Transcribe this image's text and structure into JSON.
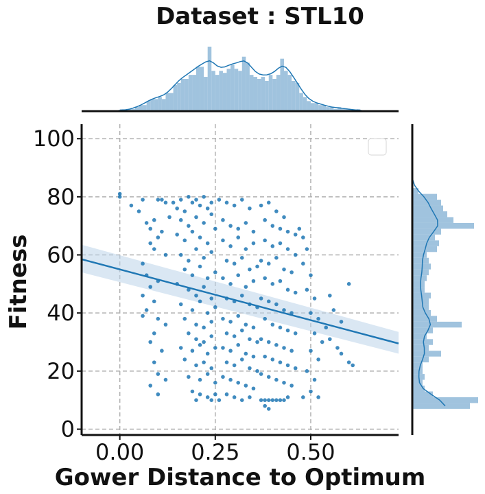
{
  "chart_data": {
    "type": "scatter",
    "title": "Dataset :  STL10",
    "xlabel": "Gower Distance to Optimum",
    "ylabel": "Fitness",
    "xlim": [
      -0.1,
      0.73
    ],
    "ylim": [
      -2,
      105
    ],
    "xticks": [
      0.0,
      0.25,
      0.5
    ],
    "xtick_labels": [
      "0.00",
      "0.25",
      "0.50"
    ],
    "yticks": [
      0,
      20,
      40,
      60,
      80,
      100
    ],
    "ytick_labels": [
      "0",
      "20",
      "40",
      "60",
      "80",
      "100"
    ],
    "grid": true,
    "legend": "top-right (empty)",
    "colors": {
      "points": "#1f77b4",
      "line": "#1f77b4",
      "band": "#bcd3ea",
      "hist": "#8fb8d8"
    },
    "regression": {
      "x": [
        -0.1,
        0.73
      ],
      "y": [
        58.5,
        29.5
      ],
      "ci_lower": [
        54,
        26
      ],
      "ci_upper": [
        63.5,
        33.5
      ]
    },
    "points": [
      [
        0.0,
        81
      ],
      [
        0.0,
        80
      ],
      [
        0.03,
        77
      ],
      [
        0.05,
        75
      ],
      [
        0.06,
        79
      ],
      [
        0.07,
        71
      ],
      [
        0.08,
        64
      ],
      [
        0.08,
        69
      ],
      [
        0.09,
        72
      ],
      [
        0.1,
        79
      ],
      [
        0.11,
        79
      ],
      [
        0.12,
        78
      ],
      [
        0.13,
        73
      ],
      [
        0.11,
        68
      ],
      [
        0.1,
        66
      ],
      [
        0.09,
        62
      ],
      [
        0.12,
        60
      ],
      [
        0.06,
        57
      ],
      [
        0.07,
        53
      ],
      [
        0.1,
        51
      ],
      [
        0.08,
        49
      ],
      [
        0.06,
        46
      ],
      [
        0.09,
        44
      ],
      [
        0.07,
        41
      ],
      [
        0.06,
        39
      ],
      [
        0.1,
        38
      ],
      [
        0.12,
        36
      ],
      [
        0.09,
        33
      ],
      [
        0.08,
        30
      ],
      [
        0.11,
        27
      ],
      [
        0.09,
        23
      ],
      [
        0.1,
        19
      ],
      [
        0.12,
        17
      ],
      [
        0.08,
        15
      ],
      [
        0.1,
        12
      ],
      [
        0.14,
        78
      ],
      [
        0.15,
        76
      ],
      [
        0.16,
        79
      ],
      [
        0.17,
        75
      ],
      [
        0.18,
        80
      ],
      [
        0.19,
        78
      ],
      [
        0.2,
        79
      ],
      [
        0.21,
        77
      ],
      [
        0.22,
        80
      ],
      [
        0.23,
        76
      ],
      [
        0.24,
        78
      ],
      [
        0.16,
        72
      ],
      [
        0.18,
        70
      ],
      [
        0.2,
        73
      ],
      [
        0.22,
        71
      ],
      [
        0.24,
        74
      ],
      [
        0.15,
        67
      ],
      [
        0.17,
        65
      ],
      [
        0.19,
        68
      ],
      [
        0.21,
        66
      ],
      [
        0.23,
        64
      ],
      [
        0.25,
        69
      ],
      [
        0.16,
        60
      ],
      [
        0.18,
        58
      ],
      [
        0.2,
        62
      ],
      [
        0.22,
        59
      ],
      [
        0.24,
        61
      ],
      [
        0.17,
        55
      ],
      [
        0.19,
        53
      ],
      [
        0.21,
        56
      ],
      [
        0.23,
        52
      ],
      [
        0.25,
        54
      ],
      [
        0.15,
        50
      ],
      [
        0.18,
        48
      ],
      [
        0.2,
        46
      ],
      [
        0.22,
        49
      ],
      [
        0.24,
        45
      ],
      [
        0.16,
        43
      ],
      [
        0.19,
        41
      ],
      [
        0.21,
        44
      ],
      [
        0.23,
        40
      ],
      [
        0.25,
        42
      ],
      [
        0.17,
        38
      ],
      [
        0.2,
        36
      ],
      [
        0.22,
        35
      ],
      [
        0.24,
        37
      ],
      [
        0.18,
        33
      ],
      [
        0.2,
        31
      ],
      [
        0.22,
        30
      ],
      [
        0.24,
        32
      ],
      [
        0.16,
        28
      ],
      [
        0.19,
        27
      ],
      [
        0.21,
        29
      ],
      [
        0.23,
        26
      ],
      [
        0.25,
        28
      ],
      [
        0.17,
        24
      ],
      [
        0.2,
        22
      ],
      [
        0.22,
        23
      ],
      [
        0.24,
        21
      ],
      [
        0.18,
        18
      ],
      [
        0.21,
        17
      ],
      [
        0.23,
        19
      ],
      [
        0.25,
        16
      ],
      [
        0.19,
        13
      ],
      [
        0.21,
        12
      ],
      [
        0.23,
        11
      ],
      [
        0.25,
        12
      ],
      [
        0.2,
        10
      ],
      [
        0.24,
        10
      ],
      [
        0.26,
        79
      ],
      [
        0.28,
        78
      ],
      [
        0.3,
        77
      ],
      [
        0.32,
        79
      ],
      [
        0.34,
        76
      ],
      [
        0.27,
        72
      ],
      [
        0.29,
        70
      ],
      [
        0.31,
        69
      ],
      [
        0.33,
        71
      ],
      [
        0.35,
        68
      ],
      [
        0.27,
        65
      ],
      [
        0.29,
        63
      ],
      [
        0.31,
        66
      ],
      [
        0.33,
        62
      ],
      [
        0.35,
        64
      ],
      [
        0.28,
        58
      ],
      [
        0.3,
        57
      ],
      [
        0.32,
        59
      ],
      [
        0.34,
        55
      ],
      [
        0.36,
        56
      ],
      [
        0.27,
        52
      ],
      [
        0.29,
        50
      ],
      [
        0.31,
        53
      ],
      [
        0.33,
        49
      ],
      [
        0.35,
        51
      ],
      [
        0.28,
        45
      ],
      [
        0.3,
        44
      ],
      [
        0.32,
        46
      ],
      [
        0.34,
        43
      ],
      [
        0.36,
        42
      ],
      [
        0.27,
        38
      ],
      [
        0.29,
        37
      ],
      [
        0.31,
        39
      ],
      [
        0.33,
        36
      ],
      [
        0.35,
        35
      ],
      [
        0.28,
        33
      ],
      [
        0.3,
        32
      ],
      [
        0.32,
        34
      ],
      [
        0.34,
        31
      ],
      [
        0.36,
        30
      ],
      [
        0.27,
        28
      ],
      [
        0.29,
        27
      ],
      [
        0.31,
        29
      ],
      [
        0.33,
        26
      ],
      [
        0.35,
        25
      ],
      [
        0.28,
        23
      ],
      [
        0.3,
        22
      ],
      [
        0.32,
        24
      ],
      [
        0.34,
        21
      ],
      [
        0.36,
        20
      ],
      [
        0.27,
        18
      ],
      [
        0.29,
        17
      ],
      [
        0.31,
        16
      ],
      [
        0.33,
        15
      ],
      [
        0.35,
        14
      ],
      [
        0.28,
        12
      ],
      [
        0.3,
        11
      ],
      [
        0.32,
        10
      ],
      [
        0.34,
        11
      ],
      [
        0.26,
        10
      ],
      [
        0.37,
        77
      ],
      [
        0.39,
        78
      ],
      [
        0.41,
        75
      ],
      [
        0.43,
        73
      ],
      [
        0.38,
        72
      ],
      [
        0.4,
        70
      ],
      [
        0.42,
        69
      ],
      [
        0.44,
        68
      ],
      [
        0.46,
        67
      ],
      [
        0.38,
        65
      ],
      [
        0.4,
        63
      ],
      [
        0.42,
        64
      ],
      [
        0.44,
        62
      ],
      [
        0.46,
        60
      ],
      [
        0.37,
        58
      ],
      [
        0.39,
        57
      ],
      [
        0.41,
        59
      ],
      [
        0.43,
        55
      ],
      [
        0.45,
        54
      ],
      [
        0.38,
        52
      ],
      [
        0.4,
        50
      ],
      [
        0.42,
        51
      ],
      [
        0.44,
        48
      ],
      [
        0.46,
        47
      ],
      [
        0.37,
        45
      ],
      [
        0.39,
        44
      ],
      [
        0.41,
        43
      ],
      [
        0.43,
        41
      ],
      [
        0.45,
        40
      ],
      [
        0.38,
        38
      ],
      [
        0.4,
        36
      ],
      [
        0.42,
        35
      ],
      [
        0.44,
        34
      ],
      [
        0.46,
        33
      ],
      [
        0.37,
        31
      ],
      [
        0.39,
        30
      ],
      [
        0.41,
        29
      ],
      [
        0.43,
        28
      ],
      [
        0.45,
        27
      ],
      [
        0.38,
        25
      ],
      [
        0.4,
        24
      ],
      [
        0.42,
        23
      ],
      [
        0.44,
        22
      ],
      [
        0.46,
        21
      ],
      [
        0.37,
        19
      ],
      [
        0.39,
        18
      ],
      [
        0.41,
        17
      ],
      [
        0.43,
        16
      ],
      [
        0.45,
        15
      ],
      [
        0.37,
        10
      ],
      [
        0.38,
        10
      ],
      [
        0.39,
        10
      ],
      [
        0.4,
        10
      ],
      [
        0.41,
        10
      ],
      [
        0.42,
        10
      ],
      [
        0.43,
        10
      ],
      [
        0.44,
        11
      ],
      [
        0.38,
        8
      ],
      [
        0.39,
        7
      ],
      [
        0.47,
        69
      ],
      [
        0.48,
        66
      ],
      [
        0.49,
        62
      ],
      [
        0.48,
        57
      ],
      [
        0.5,
        53
      ],
      [
        0.49,
        48
      ],
      [
        0.51,
        45
      ],
      [
        0.5,
        40
      ],
      [
        0.52,
        38
      ],
      [
        0.51,
        33
      ],
      [
        0.53,
        30
      ],
      [
        0.5,
        27
      ],
      [
        0.52,
        24
      ],
      [
        0.49,
        20
      ],
      [
        0.51,
        17
      ],
      [
        0.5,
        13
      ],
      [
        0.52,
        11
      ],
      [
        0.48,
        11
      ],
      [
        0.55,
        46
      ],
      [
        0.56,
        41
      ],
      [
        0.58,
        37
      ],
      [
        0.6,
        50
      ],
      [
        0.58,
        26
      ],
      [
        0.6,
        23
      ],
      [
        0.61,
        22
      ],
      [
        0.55,
        31
      ],
      [
        0.57,
        28
      ],
      [
        0.54,
        35
      ]
    ],
    "top_hist": {
      "bin_edges": [
        -0.07,
        -0.06,
        -0.05,
        -0.04,
        -0.03,
        -0.02,
        -0.01,
        0.0,
        0.01,
        0.02,
        0.03,
        0.04,
        0.05,
        0.06,
        0.07,
        0.08,
        0.09,
        0.1,
        0.11,
        0.12,
        0.13,
        0.14,
        0.15,
        0.16,
        0.17,
        0.18,
        0.19,
        0.2,
        0.21,
        0.22,
        0.23,
        0.24,
        0.25,
        0.26,
        0.27,
        0.28,
        0.29,
        0.3,
        0.31,
        0.32,
        0.33,
        0.34,
        0.35,
        0.36,
        0.37,
        0.38,
        0.39,
        0.4,
        0.41,
        0.42,
        0.43,
        0.44,
        0.45,
        0.46,
        0.47,
        0.48,
        0.49,
        0.5,
        0.51,
        0.52,
        0.53,
        0.54,
        0.55,
        0.56,
        0.57,
        0.58,
        0.59,
        0.6,
        0.61,
        0.62,
        0.63,
        0.64,
        0.65,
        0.66,
        0.67,
        0.68,
        0.69,
        0.7
      ],
      "counts": [
        0,
        0,
        0,
        0,
        0,
        0,
        0,
        1,
        0,
        1,
        1,
        2,
        3,
        3,
        5,
        6,
        6,
        7,
        6,
        9,
        9,
        13,
        14,
        16,
        16,
        18,
        18,
        22,
        22,
        17,
        32,
        20,
        18,
        20,
        19,
        21,
        23,
        21,
        20,
        27,
        24,
        18,
        17,
        16,
        17,
        15,
        18,
        16,
        18,
        26,
        20,
        18,
        15,
        14,
        9,
        7,
        5,
        4,
        4,
        3,
        3,
        2,
        2,
        1,
        2,
        1,
        1,
        1,
        0,
        1,
        0,
        0,
        0,
        0,
        0,
        0,
        0
      ]
    },
    "right_hist": {
      "bin_edges": [
        7,
        9,
        11,
        13,
        15,
        17,
        19,
        21,
        23,
        25,
        27,
        29,
        31,
        33,
        35,
        37,
        39,
        41,
        43,
        45,
        47,
        49,
        51,
        53,
        55,
        57,
        59,
        61,
        63,
        65,
        67,
        69,
        71,
        73,
        75,
        77,
        79,
        81,
        83,
        85,
        87,
        89,
        91
      ],
      "counts": [
        28,
        32,
        10,
        6,
        5,
        6,
        5,
        5,
        8,
        14,
        8,
        10,
        7,
        10,
        24,
        12,
        9,
        8,
        8,
        9,
        6,
        6,
        7,
        8,
        9,
        8,
        7,
        12,
        13,
        11,
        14,
        30,
        20,
        17,
        15,
        14,
        12,
        3,
        0,
        0,
        0,
        0
      ]
    }
  }
}
